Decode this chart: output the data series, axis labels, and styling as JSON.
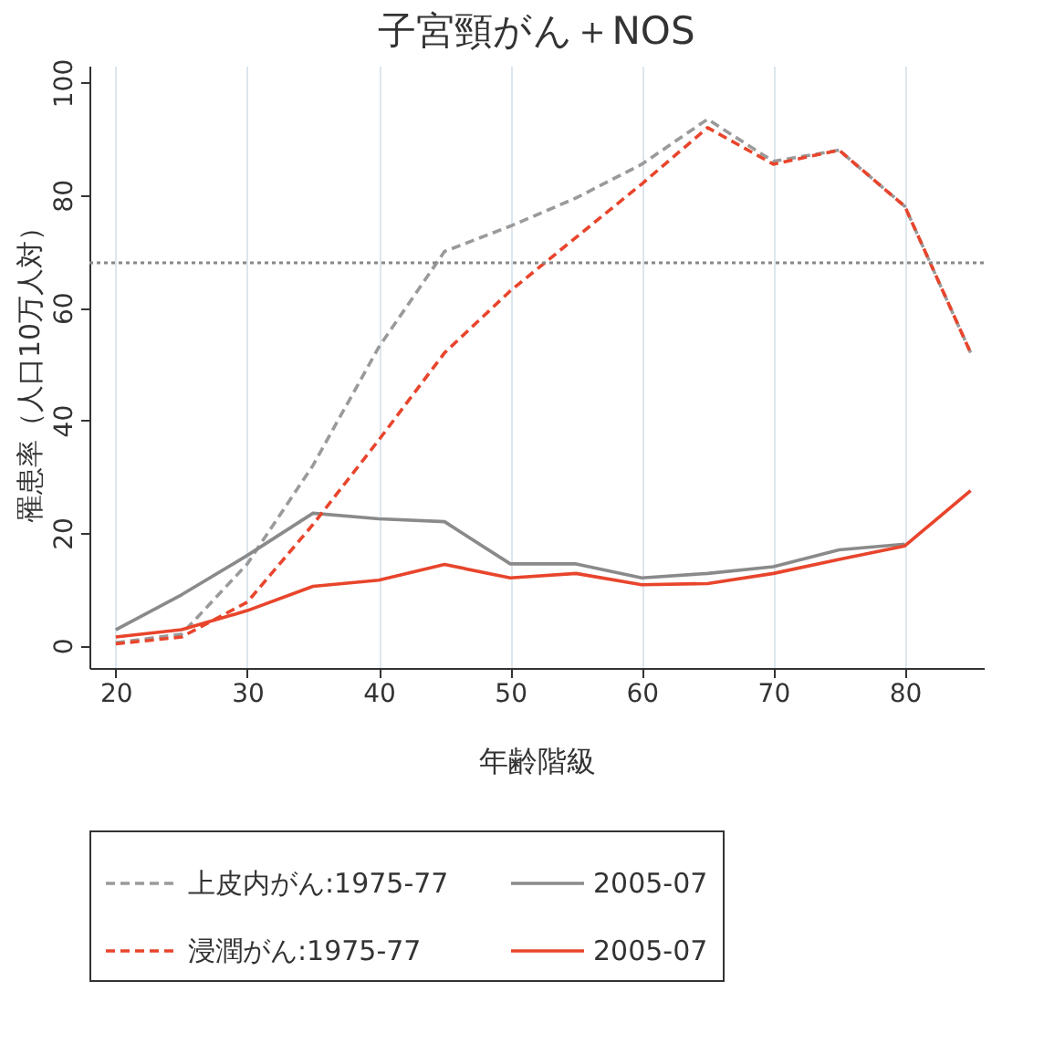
{
  "chart_data": {
    "type": "line",
    "title": "子宮頸がん＋NOS",
    "xlabel": "年齢階級",
    "ylabel": "罹患率（人口10万人対）",
    "x": [
      20,
      25,
      30,
      35,
      40,
      45,
      50,
      55,
      60,
      65,
      70,
      75,
      80,
      85
    ],
    "xlim": [
      18,
      86
    ],
    "xticks": [
      20,
      30,
      40,
      50,
      60,
      70,
      80
    ],
    "ylim": [
      -4,
      103
    ],
    "yticks": [
      0,
      20,
      40,
      60,
      80,
      100
    ],
    "grid": "x",
    "legend": "bottom",
    "marker": "none",
    "ref_lines": [
      {
        "axis": "y",
        "value": 68,
        "color": "#888888",
        "line_style": "dotted"
      }
    ],
    "series": [
      {
        "name": "上皮内がん:1975-77",
        "color": "#9a9a9a",
        "line_style": "dashed",
        "values": [
          0.5,
          2,
          14.5,
          32,
          53,
          70,
          74.5,
          79.5,
          85.5,
          93.5,
          86,
          88,
          78,
          52
        ]
      },
      {
        "name": "2005-07",
        "color": "#8a8a8a",
        "line_style": "solid",
        "values": [
          2.8,
          9,
          16,
          23.5,
          22.5,
          22,
          14.5,
          14.5,
          12,
          12.8,
          14,
          17,
          18,
          null
        ]
      },
      {
        "name": "浸潤がん:1975-77",
        "color": "#e8452c",
        "line_style": "dashed",
        "values": [
          0.3,
          1.5,
          7.7,
          21.5,
          36.5,
          52,
          63,
          72.5,
          82,
          92,
          85.5,
          88,
          78,
          52
        ]
      },
      {
        "name": "2005-07",
        "color": "#e8452c",
        "line_style": "solid",
        "values": [
          1.5,
          2.8,
          6.2,
          10.5,
          11.6,
          14.4,
          12,
          12.8,
          10.8,
          11,
          12.8,
          15.3,
          17.7,
          27.5
        ]
      }
    ]
  }
}
